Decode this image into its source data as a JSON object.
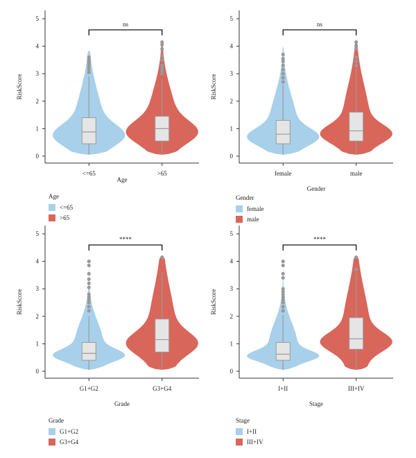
{
  "colors": {
    "group1": "#a8d0ea",
    "group2": "#d9665a",
    "box_fill": "#e5e5e5",
    "box_stroke": "#9a9a9a",
    "outlier": "#999999"
  },
  "chart_data": [
    {
      "type": "violin",
      "ylabel": "RiskScore",
      "xlabel": "Age",
      "ylim": [
        0,
        5
      ],
      "yticks": [
        "0",
        "1",
        "2",
        "3",
        "4",
        "5"
      ],
      "categories": [
        "<=65",
        ">65"
      ],
      "significance": "ns",
      "legend": {
        "title": "Age",
        "entries": [
          "<=65",
          ">65"
        ]
      },
      "groups": [
        {
          "label": "<=65",
          "min": 0.05,
          "q1": 0.45,
          "median": 0.88,
          "q3": 1.4,
          "whisker_high": 2.9,
          "max": 3.85,
          "outliers": [
            3.05,
            3.15,
            3.25,
            3.35,
            3.45,
            3.55,
            3.6
          ]
        },
        {
          "label": ">65",
          "min": 0.05,
          "q1": 0.55,
          "median": 1.0,
          "q3": 1.45,
          "whisker_high": 2.8,
          "max": 4.2,
          "outliers": [
            3.0,
            3.1,
            3.2,
            3.3,
            3.5,
            3.65,
            3.9,
            4.05,
            4.15
          ]
        }
      ]
    },
    {
      "type": "violin",
      "ylabel": "RiskScore",
      "xlabel": "Gender",
      "ylim": [
        0,
        5
      ],
      "yticks": [
        "0",
        "1",
        "2",
        "3",
        "4",
        "5"
      ],
      "categories": [
        "female",
        "male"
      ],
      "significance": "ns",
      "legend": {
        "title": "Gender",
        "entries": [
          "female",
          "male"
        ]
      },
      "groups": [
        {
          "label": "female",
          "min": 0.05,
          "q1": 0.45,
          "median": 0.8,
          "q3": 1.3,
          "whisker_high": 2.6,
          "max": 4.0,
          "outliers": [
            2.7,
            2.85,
            3.0,
            3.15,
            3.3,
            3.45,
            3.55,
            3.7
          ]
        },
        {
          "label": "male",
          "min": 0.05,
          "q1": 0.55,
          "median": 0.92,
          "q3": 1.6,
          "whisker_high": 3.2,
          "max": 4.2,
          "outliers": [
            3.3,
            3.45,
            3.6,
            3.9,
            4.0,
            4.15
          ]
        }
      ]
    },
    {
      "type": "violin",
      "ylabel": "RiskScore",
      "xlabel": "Grade",
      "ylim": [
        0,
        5
      ],
      "yticks": [
        "0",
        "1",
        "2",
        "3",
        "4",
        "5"
      ],
      "categories": [
        "G1+G2",
        "G3+G4"
      ],
      "significance": "****",
      "legend": {
        "title": "Grade",
        "entries": [
          "G1+G2",
          "G3+G4"
        ]
      },
      "groups": [
        {
          "label": "G1+G2",
          "min": 0.05,
          "q1": 0.4,
          "median": 0.65,
          "q3": 1.05,
          "whisker_high": 2.0,
          "max": 4.05,
          "outliers": [
            2.2,
            2.35,
            2.5,
            2.6,
            2.7,
            2.8,
            3.05,
            3.2,
            3.35,
            3.55,
            3.85,
            4.0
          ]
        },
        {
          "label": "G3+G4",
          "min": 0.05,
          "q1": 0.7,
          "median": 1.15,
          "q3": 1.9,
          "whisker_high": 3.6,
          "max": 4.2,
          "outliers": [
            4.15
          ]
        }
      ]
    },
    {
      "type": "violin",
      "ylabel": "RiskScore",
      "xlabel": "Stage",
      "ylim": [
        0,
        5
      ],
      "yticks": [
        "0",
        "1",
        "2",
        "3",
        "4",
        "5"
      ],
      "categories": [
        "I+II",
        "III+IV"
      ],
      "significance": "****",
      "legend": {
        "title": "Stage",
        "entries": [
          "I+II",
          "III+IV"
        ]
      },
      "groups": [
        {
          "label": "I+II",
          "min": 0.05,
          "q1": 0.4,
          "median": 0.62,
          "q3": 1.05,
          "whisker_high": 2.05,
          "max": 4.05,
          "outliers": [
            2.2,
            2.35,
            2.5,
            2.6,
            2.7,
            2.8,
            2.9,
            3.0,
            3.4,
            3.55,
            3.85,
            4.0
          ]
        },
        {
          "label": "III+IV",
          "min": 0.05,
          "q1": 0.8,
          "median": 1.18,
          "q3": 1.95,
          "whisker_high": 3.6,
          "max": 4.2,
          "outliers": [
            3.7,
            4.15
          ]
        }
      ]
    }
  ]
}
